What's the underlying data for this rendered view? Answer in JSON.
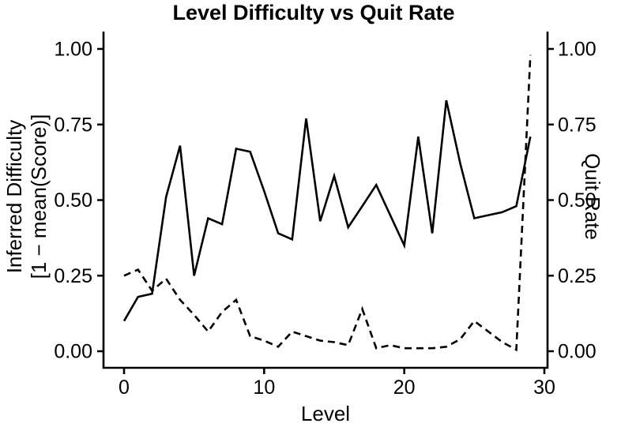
{
  "chart_data": {
    "type": "line",
    "title": "Level Difficulty vs Quit Rate",
    "xlabel": "Level",
    "ylabel_left_line1": "Inferred Difficulty",
    "ylabel_left_line2": "[1 − mean(Score)]",
    "ylabel_right": "Quit Rate",
    "xlim": [
      0,
      30
    ],
    "ylim_left": [
      0,
      1
    ],
    "ylim_right": [
      0,
      1
    ],
    "grid": false,
    "legend": "none",
    "line_color": "#000000",
    "background_color": "#ffffff",
    "x_tick_values": [
      0,
      10,
      20,
      30
    ],
    "x_tick_labels": [
      "0",
      "10",
      "20",
      "30"
    ],
    "y_tick_values": [
      0.0,
      0.25,
      0.5,
      0.75,
      1.0
    ],
    "y_tick_labels": [
      "0.00",
      "0.25",
      "0.50",
      "0.75",
      "1.00"
    ],
    "x": [
      0,
      1,
      2,
      3,
      4,
      5,
      6,
      7,
      8,
      9,
      10,
      11,
      12,
      13,
      14,
      15,
      16,
      17,
      18,
      19,
      20,
      21,
      22,
      23,
      24,
      25,
      26,
      27,
      28,
      29
    ],
    "series": [
      {
        "name": "Inferred Difficulty",
        "axis": "left",
        "style": "solid",
        "values": [
          0.1,
          0.18,
          0.19,
          0.51,
          0.68,
          0.25,
          0.44,
          0.42,
          0.67,
          0.66,
          0.53,
          0.39,
          0.37,
          0.77,
          0.43,
          0.58,
          0.41,
          0.48,
          0.55,
          0.45,
          0.35,
          0.71,
          0.39,
          0.83,
          0.62,
          0.44,
          0.45,
          0.46,
          0.48,
          0.71
        ]
      },
      {
        "name": "Quit Rate",
        "axis": "right",
        "style": "dashed",
        "values": [
          0.25,
          0.27,
          0.2,
          0.24,
          0.17,
          0.12,
          0.065,
          0.13,
          0.17,
          0.05,
          0.035,
          0.015,
          0.065,
          0.05,
          0.035,
          0.03,
          0.02,
          0.14,
          0.01,
          0.02,
          0.01,
          0.01,
          0.01,
          0.015,
          0.04,
          0.1,
          0.065,
          0.03,
          0.005,
          0.98
        ]
      }
    ]
  }
}
